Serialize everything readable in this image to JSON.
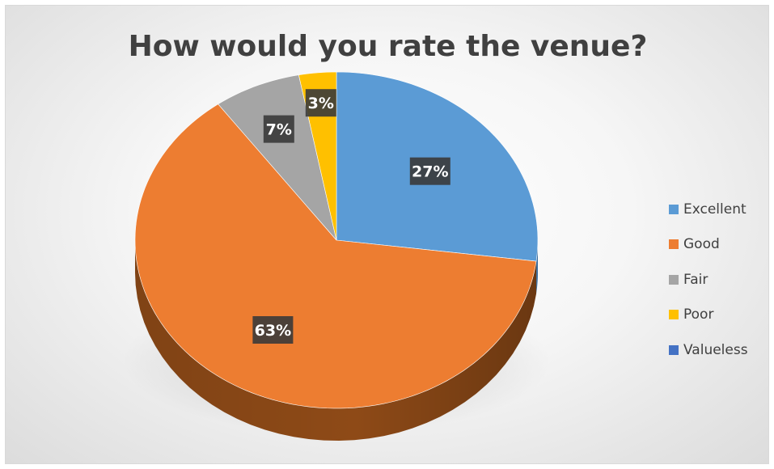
{
  "chart_data": {
    "type": "pie",
    "title": "How would you rate the venue?",
    "categories": [
      "Excellent",
      "Good",
      "Fair",
      "Poor",
      "Valueless"
    ],
    "values": [
      27,
      63,
      7,
      3,
      0
    ],
    "labels": [
      "27%",
      "63%",
      "7%",
      "3%",
      ""
    ],
    "colors": [
      "#5B9BD5",
      "#ED7D31",
      "#A5A5A5",
      "#FFC000",
      "#4472C4"
    ],
    "side_colors": [
      "#3E76AC",
      "#8E4A17",
      "#7A7A7A",
      "#B88A00",
      "#2F5597"
    ],
    "legend_position": "right",
    "style": "3d"
  }
}
